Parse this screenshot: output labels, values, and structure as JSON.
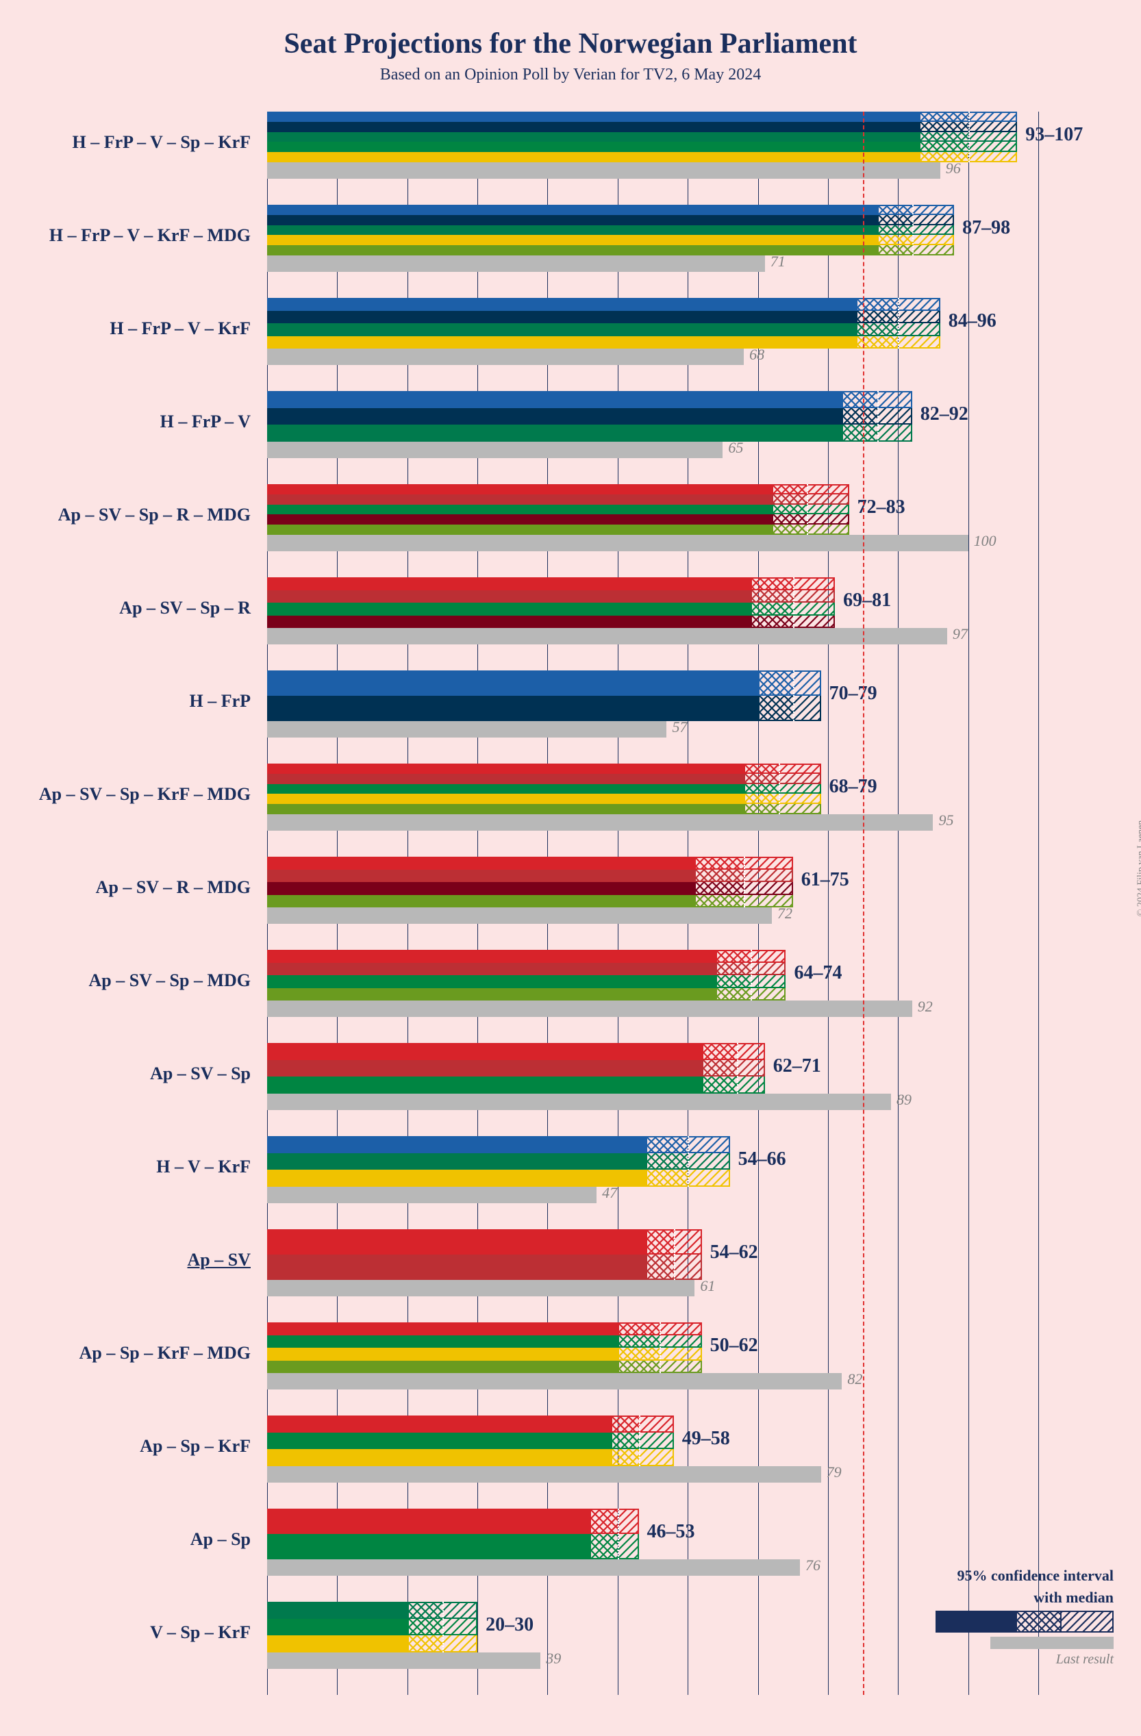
{
  "title": "Seat Projections for the Norwegian Parliament",
  "subtitle": "Based on an Opinion Poll by Verian for TV2, 6 May 2024",
  "copyright": "© 2024 Filip van Laenen",
  "axis": {
    "max": 110,
    "grid_step": 10,
    "majority_line": 85
  },
  "party_colors": {
    "H": "#1c5fa8",
    "FrP": "#003153",
    "V": "#007a4d",
    "Sp": "#008542",
    "KrF": "#f0c200",
    "MDG": "#6a9b1f",
    "Ap": "#d8232a",
    "SV": "#bc2f34",
    "R": "#7a0019"
  },
  "colors": {
    "title": "#1a2e5c",
    "background": "#fce4e4",
    "last_bar": "#b8b8b8",
    "last_label": "#808080",
    "grid": "#1a2e5c",
    "majority": "#e03030",
    "ci_border": "#1a2e5c"
  },
  "legend": {
    "ci_text_1": "95% confidence interval",
    "ci_text_2": "with median",
    "last_text": "Last result"
  },
  "rows": [
    {
      "label": "H – FrP – V – Sp – KrF",
      "parties": [
        "H",
        "FrP",
        "V",
        "Sp",
        "KrF"
      ],
      "low": 93,
      "high": 107,
      "median": 100,
      "last": 96,
      "primary": "H"
    },
    {
      "label": "H – FrP – V – KrF – MDG",
      "parties": [
        "H",
        "FrP",
        "V",
        "KrF",
        "MDG"
      ],
      "low": 87,
      "high": 98,
      "median": 92,
      "last": 71,
      "primary": "H"
    },
    {
      "label": "H – FrP – V – KrF",
      "parties": [
        "H",
        "FrP",
        "V",
        "KrF"
      ],
      "low": 84,
      "high": 96,
      "median": 90,
      "last": 68,
      "primary": "H"
    },
    {
      "label": "H – FrP – V",
      "parties": [
        "H",
        "FrP",
        "V"
      ],
      "low": 82,
      "high": 92,
      "median": 87,
      "last": 65,
      "primary": "H"
    },
    {
      "label": "Ap – SV – Sp – R – MDG",
      "parties": [
        "Ap",
        "SV",
        "Sp",
        "R",
        "MDG"
      ],
      "low": 72,
      "high": 83,
      "median": 77,
      "last": 100,
      "primary": "Ap"
    },
    {
      "label": "Ap – SV – Sp – R",
      "parties": [
        "Ap",
        "SV",
        "Sp",
        "R"
      ],
      "low": 69,
      "high": 81,
      "median": 75,
      "last": 97,
      "primary": "Ap"
    },
    {
      "label": "H – FrP",
      "parties": [
        "H",
        "FrP"
      ],
      "low": 70,
      "high": 79,
      "median": 75,
      "last": 57,
      "primary": "H"
    },
    {
      "label": "Ap – SV – Sp – KrF – MDG",
      "parties": [
        "Ap",
        "SV",
        "Sp",
        "KrF",
        "MDG"
      ],
      "low": 68,
      "high": 79,
      "median": 73,
      "last": 95,
      "primary": "Ap"
    },
    {
      "label": "Ap – SV – R – MDG",
      "parties": [
        "Ap",
        "SV",
        "R",
        "MDG"
      ],
      "low": 61,
      "high": 75,
      "median": 68,
      "last": 72,
      "primary": "Ap"
    },
    {
      "label": "Ap – SV – Sp – MDG",
      "parties": [
        "Ap",
        "SV",
        "Sp",
        "MDG"
      ],
      "low": 64,
      "high": 74,
      "median": 69,
      "last": 92,
      "primary": "Ap"
    },
    {
      "label": "Ap – SV – Sp",
      "parties": [
        "Ap",
        "SV",
        "Sp"
      ],
      "low": 62,
      "high": 71,
      "median": 67,
      "last": 89,
      "primary": "Ap"
    },
    {
      "label": "H – V – KrF",
      "parties": [
        "H",
        "V",
        "KrF"
      ],
      "low": 54,
      "high": 66,
      "median": 60,
      "last": 47,
      "primary": "H"
    },
    {
      "label": "Ap – SV",
      "parties": [
        "Ap",
        "SV"
      ],
      "low": 54,
      "high": 62,
      "median": 58,
      "last": 61,
      "primary": "Ap",
      "underlined": true
    },
    {
      "label": "Ap – Sp – KrF – MDG",
      "parties": [
        "Ap",
        "Sp",
        "KrF",
        "MDG"
      ],
      "low": 50,
      "high": 62,
      "median": 56,
      "last": 82,
      "primary": "Ap"
    },
    {
      "label": "Ap – Sp – KrF",
      "parties": [
        "Ap",
        "Sp",
        "KrF"
      ],
      "low": 49,
      "high": 58,
      "median": 53,
      "last": 79,
      "primary": "Ap"
    },
    {
      "label": "Ap – Sp",
      "parties": [
        "Ap",
        "Sp"
      ],
      "low": 46,
      "high": 53,
      "median": 50,
      "last": 76,
      "primary": "Ap"
    },
    {
      "label": "V – Sp – KrF",
      "parties": [
        "V",
        "Sp",
        "KrF"
      ],
      "low": 20,
      "high": 30,
      "median": 25,
      "last": 39,
      "primary": "V"
    }
  ]
}
